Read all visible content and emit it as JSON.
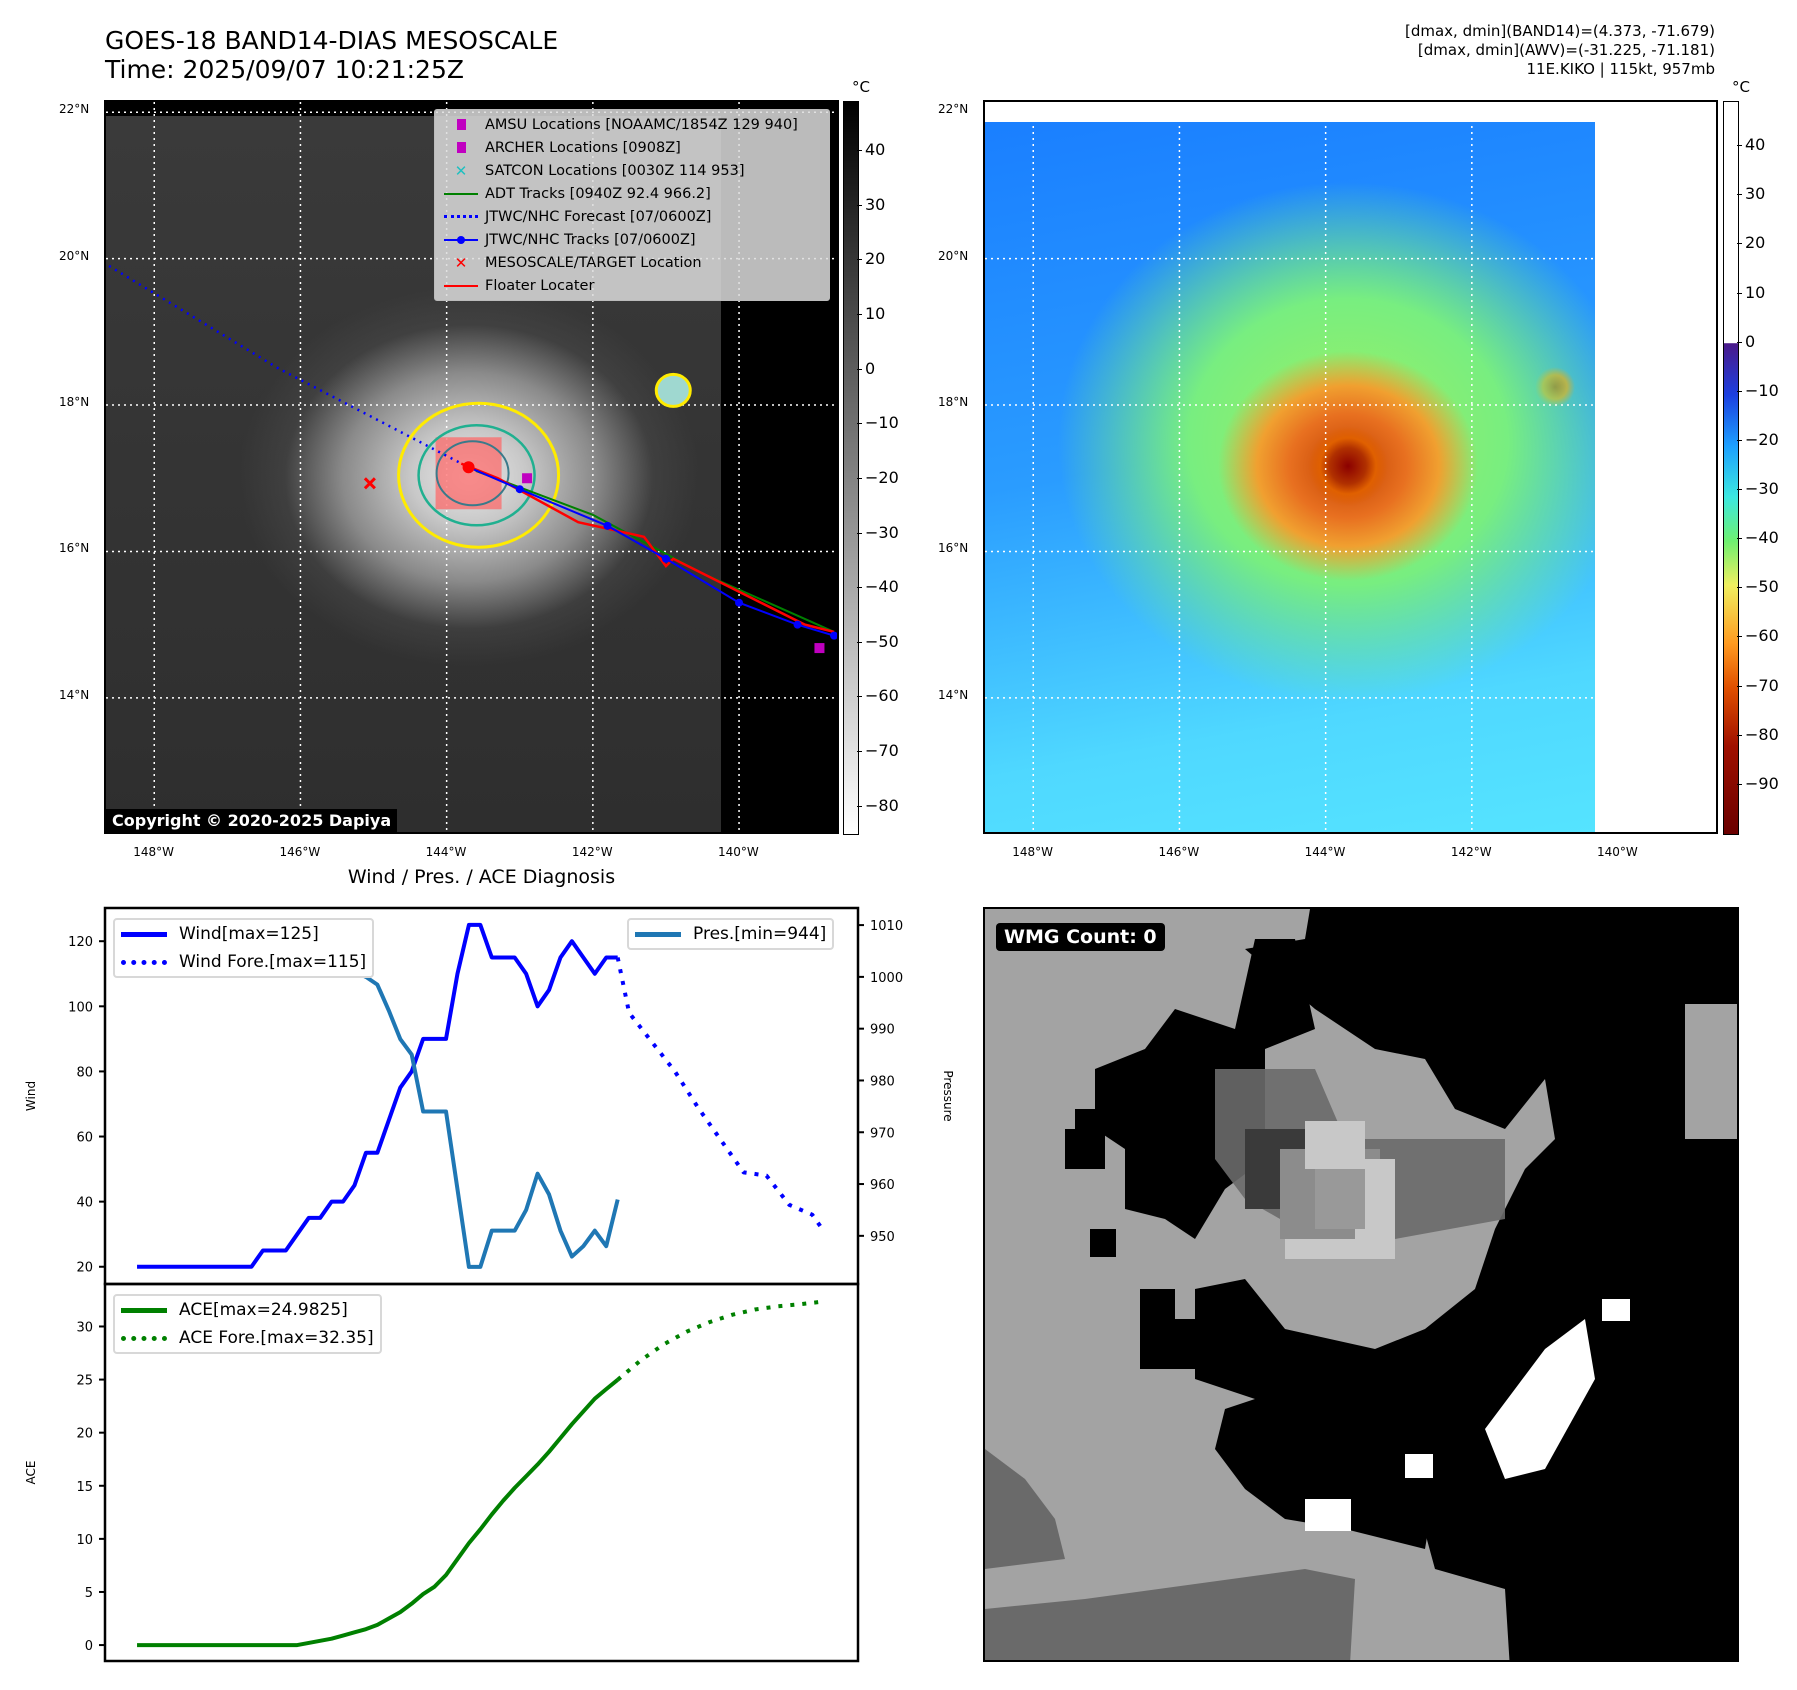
{
  "header": {
    "title_line1": "GOES-18 BAND14-DIAS MESOSCALE",
    "title_line2": "Time: 2025/09/07 10:21:25Z",
    "info_line1": "[dmax, dmin](BAND14)=(4.373, -71.679)",
    "info_line2": "[dmax, dmin](AWV)=(-31.225, -71.181)",
    "info_line3": "11E.KIKO | 115kt, 957mb"
  },
  "map": {
    "lat_ticks": [
      "22°N",
      "20°N",
      "18°N",
      "16°N",
      "14°N"
    ],
    "lat_values": [
      22,
      20,
      18,
      16,
      14
    ],
    "lon_ticks": [
      "148°W",
      "146°W",
      "144°W",
      "142°W",
      "140°W"
    ],
    "lon_values": [
      148,
      146,
      144,
      142,
      140
    ],
    "unit": "°C",
    "copyright": "Copyright © 2020-2025 Dapiya",
    "cb1_ticks": [
      "40",
      "30",
      "20",
      "10",
      "0",
      "−10",
      "−20",
      "−30",
      "−40",
      "−50",
      "−60",
      "−70",
      "−80"
    ],
    "cb1_values": [
      40,
      30,
      20,
      10,
      0,
      -10,
      -20,
      -30,
      -40,
      -50,
      -60,
      -70,
      -80
    ],
    "cb1_range": [
      -85,
      49
    ],
    "cb2_ticks": [
      "40",
      "30",
      "20",
      "10",
      "0",
      "−10",
      "−20",
      "−30",
      "−40",
      "−50",
      "−60",
      "−70",
      "−80",
      "−90"
    ],
    "cb2_values": [
      40,
      30,
      20,
      10,
      0,
      -10,
      -20,
      -30,
      -40,
      -50,
      -60,
      -70,
      -80,
      -90
    ],
    "cb2_range": [
      -100,
      49
    ],
    "legend": [
      {
        "label": "AMSU Locations [NOAAMC/1854Z 129 940]",
        "color": "#c000c0",
        "icon": "square-marker"
      },
      {
        "label": "ARCHER Locations [0908Z]",
        "color": "#c000c0",
        "icon": "square-marker"
      },
      {
        "label": "SATCON Locations [0030Z 114 953]",
        "color": "#20c0c0",
        "icon": "x-marker"
      },
      {
        "label": "ADT Tracks [0940Z 92.4 966.2]",
        "color": "#008000",
        "icon": "solid-line"
      },
      {
        "label": "JTWC/NHC Forecast [07/0600Z]",
        "color": "#0000ff",
        "icon": "dotted-line"
      },
      {
        "label": "JTWC/NHC Tracks [07/0600Z]",
        "color": "#0000ff",
        "icon": "dot-line"
      },
      {
        "label": "MESOSCALE/TARGET Location",
        "color": "#ff0000",
        "icon": "x-marker"
      },
      {
        "label": "Floater Locater",
        "color": "#ff0000",
        "icon": "solid-line"
      }
    ],
    "storm_center": [
      17.15,
      143.7
    ],
    "forecast_track": [
      [
        19.95,
        148.7
      ],
      [
        18.5,
        146.3
      ],
      [
        17.15,
        143.7
      ]
    ],
    "jtwc_track": [
      [
        17.15,
        143.7
      ],
      [
        16.85,
        143.0
      ],
      [
        16.35,
        141.8
      ],
      [
        15.9,
        141.0
      ],
      [
        15.3,
        140.0
      ],
      [
        15.0,
        139.2
      ],
      [
        14.85,
        138.7
      ]
    ],
    "floater_track": [
      [
        17.2,
        143.8
      ],
      [
        17.0,
        143.3
      ],
      [
        16.4,
        142.2
      ],
      [
        16.2,
        141.3
      ],
      [
        15.8,
        141.0
      ],
      [
        15.9,
        140.9
      ],
      [
        15.4,
        139.9
      ],
      [
        15.0,
        139.1
      ],
      [
        14.9,
        138.7
      ]
    ],
    "adt_track": [
      [
        17.1,
        143.6
      ],
      [
        16.5,
        142.0
      ],
      [
        15.7,
        140.5
      ],
      [
        14.9,
        138.7
      ]
    ],
    "mesoscale_target": [
      16.93,
      145.05
    ],
    "amsu_location": [
      14.68,
      138.9
    ],
    "archer_location": [
      17.0,
      142.9
    ]
  },
  "wmg": {
    "label": "WMG Count: 0"
  },
  "chart_data": [
    {
      "type": "line",
      "title": "Wind / Pres. / ACE Diagnosis",
      "ylabel": "Wind",
      "y2label": "Pressure",
      "xlim": [
        -2.8,
        63
      ],
      "ylim": [
        14.7,
        130.2
      ],
      "y2lim": [
        940.7,
        1013.3
      ],
      "yticks": [
        20,
        40,
        60,
        80,
        100,
        120
      ],
      "y2ticks": [
        950,
        960,
        970,
        980,
        990,
        1000,
        1010
      ],
      "series": [
        {
          "name": "Wind[max=125]",
          "color": "#0000ff",
          "style": "solid",
          "x": [
            0,
            1,
            2,
            3,
            4,
            5,
            6,
            7,
            8,
            9,
            10,
            11,
            12,
            13,
            14,
            15,
            16,
            17,
            18,
            19,
            20,
            21,
            22,
            23,
            24,
            25,
            26,
            27,
            28,
            29,
            30,
            31,
            32,
            33,
            34,
            35,
            36,
            37,
            38,
            39,
            40,
            41,
            42
          ],
          "values": [
            20,
            20,
            20,
            20,
            20,
            20,
            20,
            20,
            20,
            20,
            20,
            25,
            25,
            25,
            30,
            35,
            35,
            40,
            40,
            45,
            55,
            55,
            65,
            75,
            80,
            90,
            90,
            90,
            110,
            125,
            125,
            115,
            115,
            115,
            110,
            100,
            105,
            115,
            120,
            115,
            110,
            115,
            115
          ]
        },
        {
          "name": "Wind Fore.[max=115]",
          "color": "#0000ff",
          "style": "dotted",
          "x": [
            42,
            43,
            45,
            47,
            49,
            51,
            53,
            55,
            57,
            59,
            60
          ],
          "values": [
            115,
            98,
            89,
            80,
            69,
            59,
            49,
            48,
            39,
            36,
            31
          ]
        },
        {
          "name": "Pres.[min=944]",
          "color": "#1f77b4",
          "style": "solid",
          "axis": "right",
          "x": [
            0,
            1,
            2,
            3,
            4,
            5,
            6,
            7,
            8,
            9,
            10,
            11,
            12,
            13,
            14,
            15,
            16,
            17,
            18,
            19,
            20,
            21,
            22,
            23,
            24,
            25,
            26,
            27,
            28,
            29,
            30,
            31,
            32,
            33,
            34,
            35,
            36,
            37,
            38,
            39,
            40,
            41,
            42
          ],
          "values": [
            1010,
            1010,
            1010,
            1010,
            1010,
            1010,
            1010,
            1010,
            1010,
            1010,
            1010,
            1010,
            1009,
            1009,
            1009,
            1008.4,
            1006.7,
            1005.5,
            1005.5,
            1001,
            1000,
            998.5,
            993.5,
            988,
            985,
            974,
            974,
            974,
            959,
            944,
            944,
            951,
            951,
            951,
            955,
            962,
            958,
            951,
            946,
            948,
            951,
            948,
            957
          ]
        }
      ]
    },
    {
      "type": "line",
      "ylabel": "ACE",
      "xlim": [
        -2.8,
        63
      ],
      "ylim": [
        -1.5,
        34
      ],
      "yticks": [
        0,
        5,
        10,
        15,
        20,
        25,
        30
      ],
      "series": [
        {
          "name": "ACE[max=24.9825]",
          "color": "#008000",
          "style": "solid",
          "x": [
            0,
            1,
            2,
            3,
            4,
            5,
            6,
            7,
            8,
            9,
            10,
            11,
            12,
            13,
            14,
            15,
            16,
            17,
            18,
            19,
            20,
            21,
            22,
            23,
            24,
            25,
            26,
            27,
            28,
            29,
            30,
            31,
            32,
            33,
            34,
            35,
            36,
            37,
            38,
            39,
            40,
            41,
            42
          ],
          "values": [
            0,
            0,
            0,
            0,
            0,
            0,
            0,
            0,
            0,
            0,
            0,
            0,
            0,
            0,
            0,
            0.2,
            0.4,
            0.6,
            0.9,
            1.2,
            1.5,
            1.9,
            2.5,
            3.1,
            3.9,
            4.8,
            5.5,
            6.6,
            8.1,
            9.6,
            10.9,
            12.3,
            13.6,
            14.8,
            15.9,
            17.0,
            18.2,
            19.5,
            20.8,
            22.0,
            23.2,
            24.1,
            24.98
          ]
        },
        {
          "name": "ACE Fore.[max=32.35]",
          "color": "#008000",
          "style": "dotted",
          "x": [
            42,
            44,
            46,
            48,
            50,
            52,
            54,
            56,
            58,
            60
          ],
          "values": [
            24.98,
            26.8,
            28.3,
            29.5,
            30.4,
            31.1,
            31.6,
            31.9,
            32.1,
            32.35
          ]
        }
      ]
    }
  ]
}
